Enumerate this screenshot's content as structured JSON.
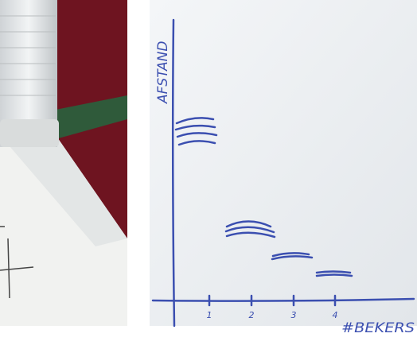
{
  "sketch": {
    "y_axis_label": "AFSTAND",
    "x_axis_label": "#BEKERS",
    "x_ticks": [
      "1",
      "2",
      "3",
      "4"
    ]
  }
}
